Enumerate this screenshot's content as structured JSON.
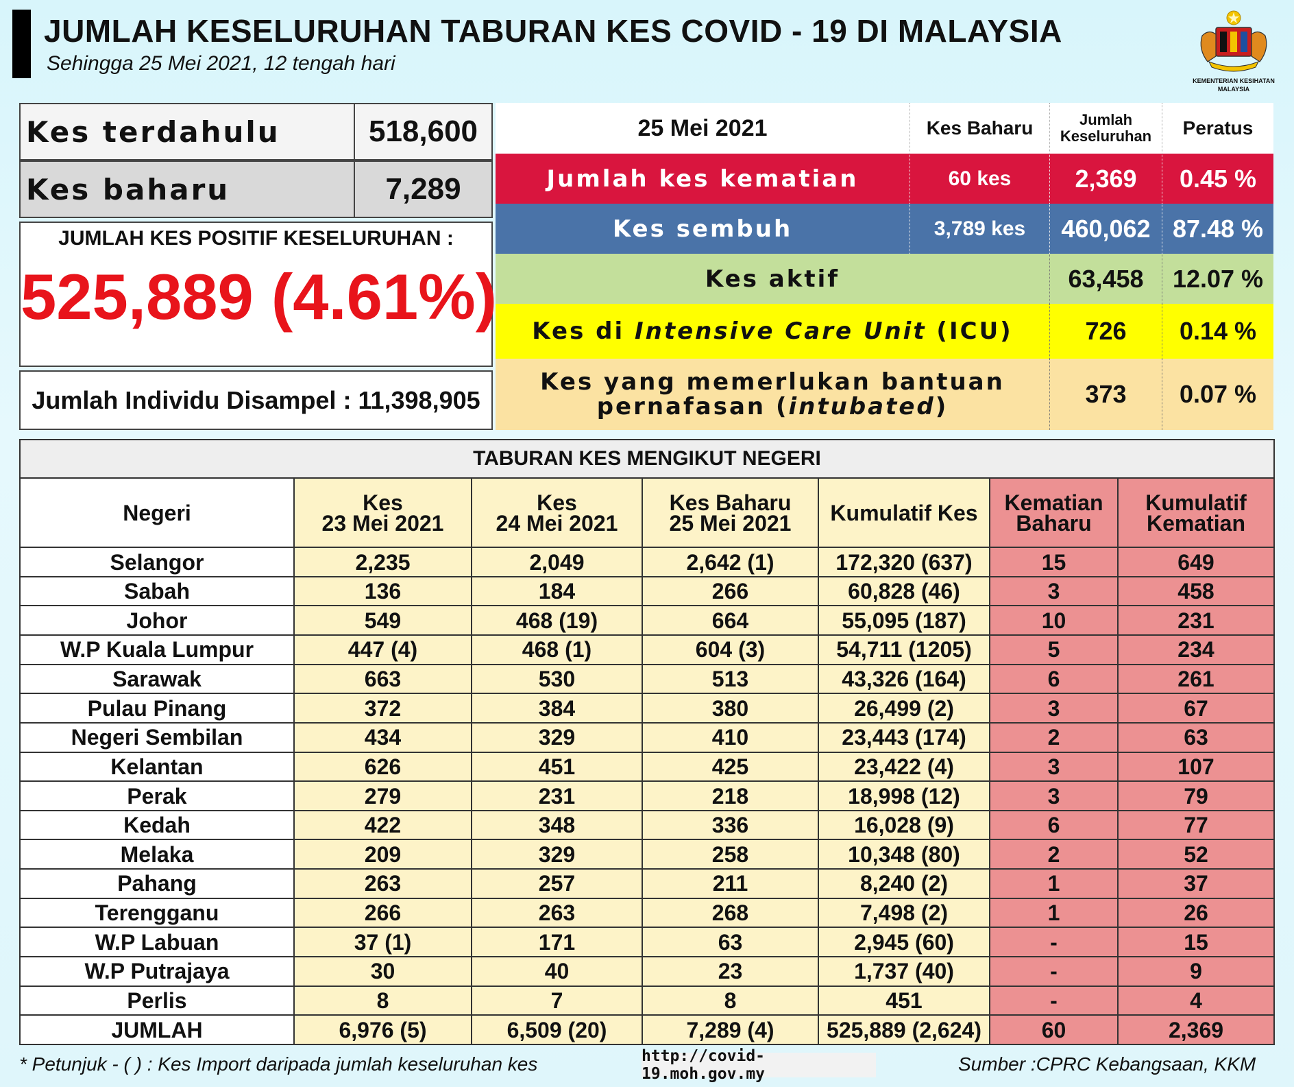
{
  "header": {
    "title": "JUMLAH KESELURUHAN TABURAN KES COVID - 19 DI MALAYSIA",
    "subtitle": "Sehingga 25 Mei 2021, 12 tengah hari",
    "logo_caption_1": "KEMENTERIAN KESIHATAN",
    "logo_caption_2": "MALAYSIA"
  },
  "summary": {
    "previous_label": "Kes terdahulu",
    "previous_value": "518,600",
    "new_label": "Kes baharu",
    "new_value": "7,289",
    "total_label": "JUMLAH KES POSITIF KESELURUHAN :",
    "total_value": "525,889 (4.61%)",
    "sampled_text": "Jumlah Individu Disampel : 11,398,905"
  },
  "status": {
    "header_date": "25 Mei 2021",
    "col_new": "Kes Baharu",
    "col_total_1": "Jumlah",
    "col_total_2": "Keseluruhan",
    "col_percent": "Peratus",
    "deaths": {
      "label": "Jumlah kes kematian",
      "new": "60 kes",
      "total": "2,369",
      "percent": "0.45 %"
    },
    "recovered": {
      "label": "Kes sembuh",
      "new": "3,789 kes",
      "total": "460,062",
      "percent": "87.48 %"
    },
    "active": {
      "label": "Kes aktif",
      "total": "63,458",
      "percent": "12.07 %"
    },
    "icu": {
      "label_pre": "Kes di ",
      "label_em": "Intensive Care Unit",
      "label_post": " (ICU)",
      "total": "726",
      "percent": "0.14 %"
    },
    "intubated": {
      "label_1": "Kes yang memerlukan bantuan",
      "label_2_pre": "pernafasan (",
      "label_2_em": "intubated",
      "label_2_post": ")",
      "total": "373",
      "percent": "0.07 %"
    }
  },
  "table": {
    "caption": "TABURAN KES MENGIKUT NEGERI",
    "headers": {
      "state": "Negeri",
      "d23_1": "Kes",
      "d23_2": "23 Mei 2021",
      "d24_1": "Kes",
      "d24_2": "24 Mei 2021",
      "d25_1": "Kes Baharu",
      "d25_2": "25 Mei 2021",
      "cum": "Kumulatif Kes",
      "death_1": "Kematian",
      "death_2": "Baharu",
      "cumdeath_1": "Kumulatif",
      "cumdeath_2": "Kematian"
    },
    "rows": [
      [
        "Selangor",
        "2,235",
        "2,049",
        "2,642 (1)",
        "172,320 (637)",
        "15",
        "649"
      ],
      [
        "Sabah",
        "136",
        "184",
        "266",
        "60,828 (46)",
        "3",
        "458"
      ],
      [
        "Johor",
        "549",
        "468 (19)",
        "664",
        "55,095 (187)",
        "10",
        "231"
      ],
      [
        "W.P Kuala Lumpur",
        "447 (4)",
        "468 (1)",
        "604 (3)",
        "54,711 (1205)",
        "5",
        "234"
      ],
      [
        "Sarawak",
        "663",
        "530",
        "513",
        "43,326 (164)",
        "6",
        "261"
      ],
      [
        "Pulau Pinang",
        "372",
        "384",
        "380",
        "26,499 (2)",
        "3",
        "67"
      ],
      [
        "Negeri Sembilan",
        "434",
        "329",
        "410",
        "23,443 (174)",
        "2",
        "63"
      ],
      [
        "Kelantan",
        "626",
        "451",
        "425",
        "23,422 (4)",
        "3",
        "107"
      ],
      [
        "Perak",
        "279",
        "231",
        "218",
        "18,998 (12)",
        "3",
        "79"
      ],
      [
        "Kedah",
        "422",
        "348",
        "336",
        "16,028 (9)",
        "6",
        "77"
      ],
      [
        "Melaka",
        "209",
        "329",
        "258",
        "10,348 (80)",
        "2",
        "52"
      ],
      [
        "Pahang",
        "263",
        "257",
        "211",
        "8,240 (2)",
        "1",
        "37"
      ],
      [
        "Terengganu",
        "266",
        "263",
        "268",
        "7,498 (2)",
        "1",
        "26"
      ],
      [
        "W.P Labuan",
        "37 (1)",
        "171",
        "63",
        "2,945 (60)",
        "-",
        "15"
      ],
      [
        "W.P Putrajaya",
        "30",
        "40",
        "23",
        "1,737 (40)",
        "-",
        "9"
      ],
      [
        "Perlis",
        "8",
        "7",
        "8",
        "451",
        "-",
        "4"
      ],
      [
        "JUMLAH",
        "6,976 (5)",
        "6,509 (20)",
        "7,289 (4)",
        "525,889 (2,624)",
        "60",
        "2,369"
      ]
    ]
  },
  "footer": {
    "note": "* Petunjuk  - (  ) : Kes Import daripada jumlah keseluruhan kes",
    "url": "http://covid-19.moh.gov.my",
    "source": "Sumber :CPRC Kebangsaan,  KKM"
  }
}
